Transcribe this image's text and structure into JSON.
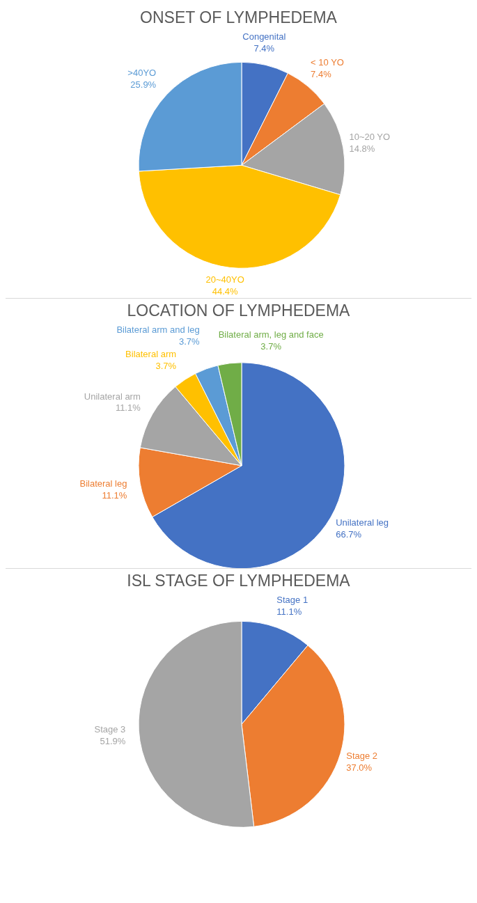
{
  "chart_data": [
    {
      "type": "pie",
      "title": "ONSET OF LYMPHEDEMA",
      "categories": [
        "Congenital",
        "< 10 YO",
        "10~20 YO",
        "20~40YO",
        ">40YO"
      ],
      "values": [
        7.4,
        7.4,
        14.8,
        44.4,
        25.9
      ],
      "colors": [
        "#4472c4",
        "#ed7d31",
        "#a5a5a5",
        "#ffc000",
        "#5b9bd5"
      ],
      "value_labels": [
        "7.4%",
        "7.4%",
        "14.8%",
        "44.4%",
        "25.9%"
      ]
    },
    {
      "type": "pie",
      "title": "LOCATION OF LYMPHEDEMA",
      "categories": [
        "Unilateral leg",
        "Bilateral leg",
        "Unilateral arm",
        "Bilateral arm",
        "Bilateral arm and leg",
        "Bilateral arm, leg and face"
      ],
      "values": [
        66.7,
        11.1,
        11.1,
        3.7,
        3.7,
        3.7
      ],
      "colors": [
        "#4472c4",
        "#ed7d31",
        "#a5a5a5",
        "#ffc000",
        "#5b9bd5",
        "#70ad47"
      ],
      "value_labels": [
        "66.7%",
        "11.1%",
        "11.1%",
        "3.7%",
        "3.7%",
        "3.7%"
      ]
    },
    {
      "type": "pie",
      "title": "ISL STAGE OF LYMPHEDEMA",
      "categories": [
        "Stage 1",
        "Stage 2",
        "Stage 3"
      ],
      "values": [
        11.1,
        37.0,
        51.9
      ],
      "colors": [
        "#4472c4",
        "#ed7d31",
        "#a5a5a5"
      ],
      "value_labels": [
        "11.1%",
        "37.0%",
        "51.9%"
      ]
    }
  ]
}
